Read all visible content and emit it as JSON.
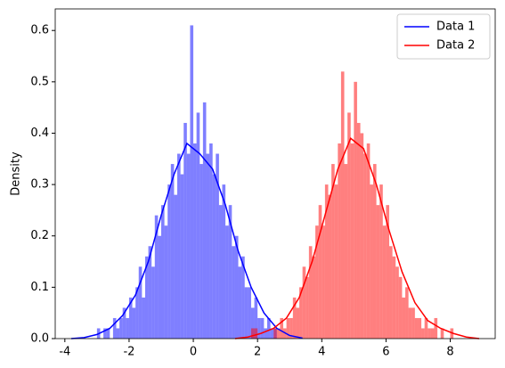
{
  "chart_data": {
    "type": "histogram",
    "ylabel": "Density",
    "xlim": [
      -4.3,
      9.4
    ],
    "ylim": [
      0,
      0.642
    ],
    "xticks": [
      -4,
      -2,
      0,
      2,
      4,
      6,
      8
    ],
    "yticks": [
      {
        "value": 0,
        "label": "0.0"
      },
      0.1,
      0.2,
      0.3,
      0.4,
      0.5,
      0.6
    ],
    "legend": "upper right",
    "series": [
      {
        "name": "Data 1",
        "color": "#0000ff",
        "bins": [
          -3.0,
          -2.9,
          -2.8,
          -2.7,
          -2.6,
          -2.5,
          -2.4,
          -2.3,
          -2.2,
          -2.1,
          -2.0,
          -1.9,
          -1.8,
          -1.7,
          -1.6,
          -1.5,
          -1.4,
          -1.3,
          -1.2,
          -1.1,
          -1.0,
          -0.9,
          -0.8,
          -0.7,
          -0.6,
          -0.5,
          -0.4,
          -0.3,
          -0.2,
          -0.1,
          0.0,
          0.1,
          0.2,
          0.3,
          0.4,
          0.5,
          0.6,
          0.7,
          0.8,
          0.9,
          1.0,
          1.1,
          1.2,
          1.3,
          1.4,
          1.5,
          1.6,
          1.7,
          1.8,
          1.9,
          2.0,
          2.1,
          2.2,
          2.3,
          2.4,
          2.5,
          2.6
        ],
        "values": [
          0.02,
          0,
          0.02,
          0.02,
          0,
          0.04,
          0.02,
          0.04,
          0.06,
          0.04,
          0.08,
          0.06,
          0.1,
          0.14,
          0.08,
          0.16,
          0.18,
          0.14,
          0.24,
          0.2,
          0.26,
          0.22,
          0.3,
          0.34,
          0.28,
          0.36,
          0.32,
          0.42,
          0.36,
          0.61,
          0.38,
          0.44,
          0.34,
          0.46,
          0.36,
          0.38,
          0.32,
          0.36,
          0.26,
          0.3,
          0.22,
          0.26,
          0.18,
          0.2,
          0.14,
          0.16,
          0.1,
          0.1,
          0.06,
          0.08,
          0.04,
          0.04,
          0.02,
          0.04,
          0.02,
          0.02
        ],
        "kde_x": [
          -3.8,
          -3.4,
          -3.0,
          -2.6,
          -2.2,
          -1.8,
          -1.4,
          -1.0,
          -0.6,
          -0.2,
          0.2,
          0.6,
          1.0,
          1.4,
          1.8,
          2.2,
          2.6,
          3.0,
          3.4
        ],
        "kde_values": [
          0.0,
          0.002,
          0.008,
          0.02,
          0.045,
          0.085,
          0.15,
          0.24,
          0.32,
          0.38,
          0.36,
          0.33,
          0.26,
          0.17,
          0.1,
          0.05,
          0.02,
          0.006,
          0.001
        ]
      },
      {
        "name": "Data 2",
        "color": "#ff0000",
        "bins": [
          1.8,
          1.9,
          2.0,
          2.1,
          2.2,
          2.3,
          2.4,
          2.5,
          2.6,
          2.7,
          2.8,
          2.9,
          3.0,
          3.1,
          3.2,
          3.3,
          3.4,
          3.5,
          3.6,
          3.7,
          3.8,
          3.9,
          4.0,
          4.1,
          4.2,
          4.3,
          4.4,
          4.5,
          4.6,
          4.7,
          4.8,
          4.9,
          5.0,
          5.1,
          5.2,
          5.3,
          5.4,
          5.5,
          5.6,
          5.7,
          5.8,
          5.9,
          6.0,
          6.1,
          6.2,
          6.3,
          6.4,
          6.5,
          6.6,
          6.7,
          6.8,
          6.9,
          7.0,
          7.1,
          7.2,
          7.3,
          7.4,
          7.5,
          7.6,
          7.7,
          7.8,
          7.9,
          8.0,
          8.1,
          8.2
        ],
        "values": [
          0.02,
          0.02,
          0,
          0,
          0,
          0,
          0,
          0.02,
          0.02,
          0.04,
          0.02,
          0.04,
          0.04,
          0.08,
          0.06,
          0.1,
          0.14,
          0.12,
          0.18,
          0.16,
          0.22,
          0.26,
          0.22,
          0.3,
          0.28,
          0.34,
          0.3,
          0.38,
          0.52,
          0.34,
          0.44,
          0.38,
          0.5,
          0.42,
          0.4,
          0.36,
          0.38,
          0.3,
          0.34,
          0.26,
          0.3,
          0.22,
          0.26,
          0.18,
          0.16,
          0.14,
          0.12,
          0.08,
          0.1,
          0.06,
          0.06,
          0.04,
          0.04,
          0.02,
          0.04,
          0.02,
          0.02,
          0.04,
          0,
          0.02,
          0,
          0,
          0.02,
          0
        ],
        "kde_x": [
          1.3,
          1.7,
          2.1,
          2.5,
          2.9,
          3.3,
          3.7,
          4.1,
          4.5,
          4.9,
          5.3,
          5.7,
          6.1,
          6.5,
          6.9,
          7.3,
          7.7,
          8.1,
          8.5,
          8.9
        ],
        "kde_values": [
          0.0,
          0.003,
          0.01,
          0.02,
          0.04,
          0.08,
          0.15,
          0.24,
          0.33,
          0.39,
          0.37,
          0.3,
          0.21,
          0.13,
          0.07,
          0.035,
          0.02,
          0.01,
          0.003,
          0.0
        ]
      }
    ]
  }
}
